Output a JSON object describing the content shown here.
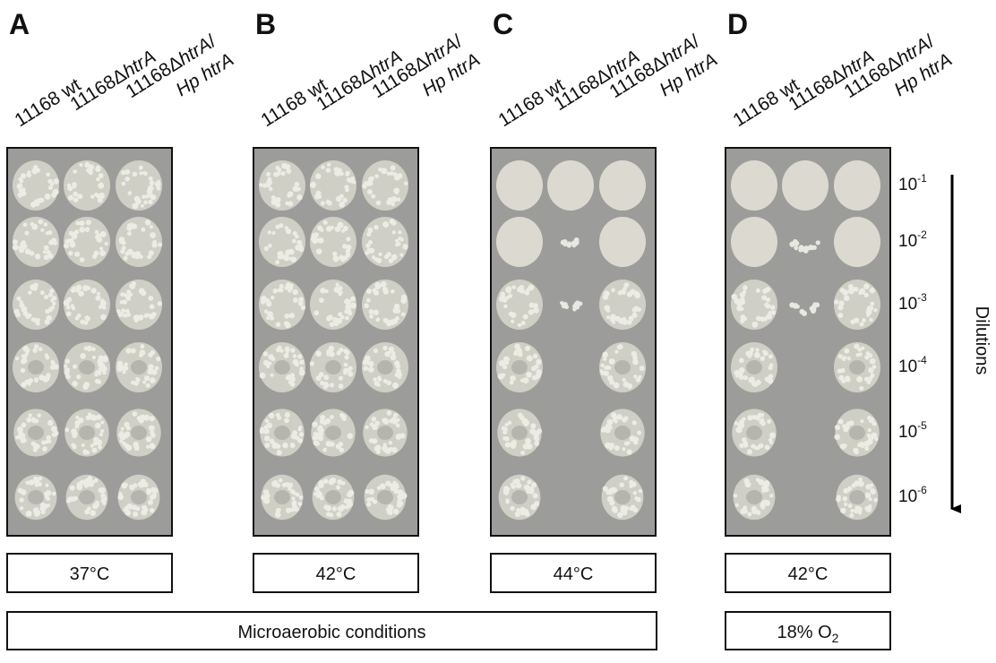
{
  "panels": [
    {
      "letter": "A",
      "temperature": "37°C"
    },
    {
      "letter": "B",
      "temperature": "42°C"
    },
    {
      "letter": "C",
      "temperature": "44°C"
    },
    {
      "letter": "D",
      "temperature": "42°C"
    }
  ],
  "strain_labels": [
    [
      [
        {
          "text": "11168 wt",
          "italic": false
        }
      ]
    ],
    [
      [
        {
          "text": "11168Δ",
          "italic": false
        },
        {
          "text": "htrA",
          "italic": true
        }
      ]
    ],
    [
      [
        {
          "text": "11168Δ",
          "italic": false
        },
        {
          "text": "htrA",
          "italic": true
        },
        {
          "text": "/",
          "italic": false
        }
      ],
      [
        {
          "text": "Hp htrA",
          "italic": true
        }
      ]
    ]
  ],
  "conditions": [
    {
      "text": "Microaerobic conditions"
    },
    {
      "text": "18% O",
      "sub": "2"
    }
  ],
  "dilutions": [
    {
      "base": "10",
      "exp": "-1"
    },
    {
      "base": "10",
      "exp": "-2"
    },
    {
      "base": "10",
      "exp": "-3"
    },
    {
      "base": "10",
      "exp": "-4"
    },
    {
      "base": "10",
      "exp": "-5"
    },
    {
      "base": "10",
      "exp": "-6"
    }
  ],
  "dilutions_label": "Dilutions"
}
